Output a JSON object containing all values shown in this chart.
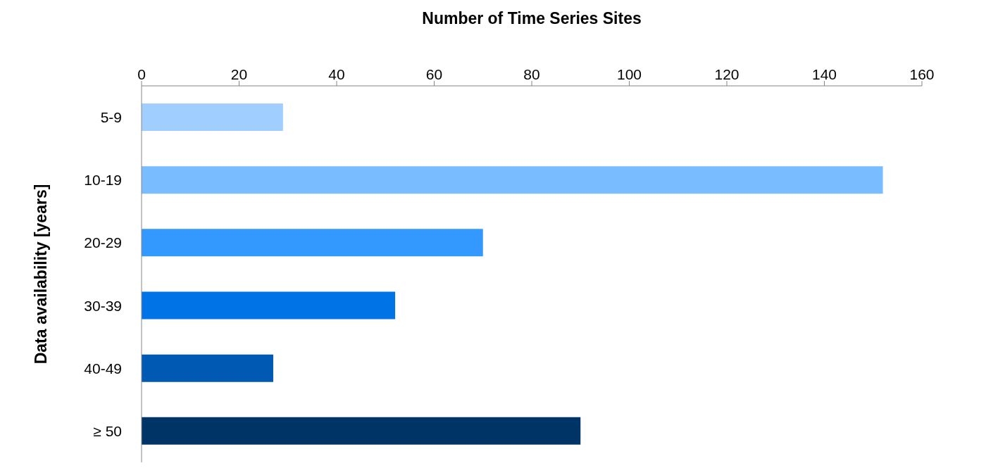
{
  "chart_data": {
    "type": "bar",
    "orientation": "horizontal",
    "xlabel": "Number of Time Series Sites",
    "ylabel": "Data availability [years]",
    "categories": [
      "5-9",
      "10-19",
      "20-29",
      "30-39",
      "40-49",
      "≥ 50"
    ],
    "values": [
      29,
      152,
      70,
      52,
      27,
      90
    ],
    "colors": [
      "#a0cfff",
      "#79bcff",
      "#3399ff",
      "#0073e6",
      "#0059b3",
      "#003366"
    ],
    "xlim": [
      0,
      160
    ],
    "xticks": [
      0,
      20,
      40,
      60,
      80,
      100,
      120,
      140,
      160
    ]
  }
}
